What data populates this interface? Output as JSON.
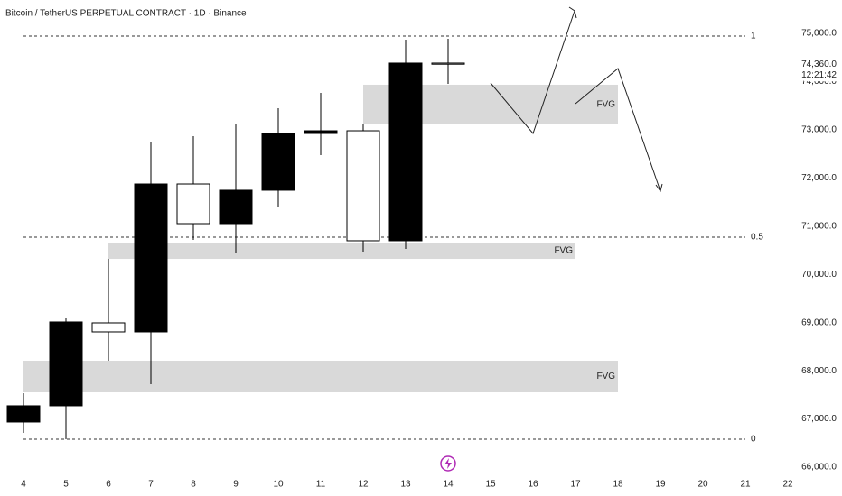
{
  "chart_data": {
    "type": "candlestick",
    "title": "Bitcoin / TetherUS PERPETUAL CONTRACT · 1D · Binance",
    "categories": [
      "4",
      "5",
      "6",
      "7",
      "8",
      "9",
      "10",
      "11",
      "12",
      "13",
      "14",
      "15",
      "16",
      "17",
      "18",
      "19",
      "20",
      "21",
      "22"
    ],
    "open": [
      66936,
      67273,
      68994,
      68807,
      71875,
      71052,
      71745,
      72923,
      72979,
      70697,
      74383,
      null,
      null,
      null,
      null,
      null,
      null,
      null,
      null
    ],
    "high": [
      67535,
      69088,
      70322,
      72736,
      72867,
      73129,
      73447,
      73765,
      73129,
      74869,
      74888,
      null,
      null,
      null,
      null,
      null,
      null,
      null,
      null
    ],
    "low": [
      66711,
      66580,
      68208,
      67721,
      70715,
      70453,
      71389,
      72474,
      70472,
      70528,
      73952,
      null,
      null,
      null,
      null,
      null,
      null,
      null,
      null
    ],
    "close": [
      67273,
      69013,
      68807,
      71875,
      71052,
      71745,
      72923,
      72979,
      70697,
      74383,
      74360,
      null,
      null,
      null,
      null,
      null,
      null,
      null,
      null
    ],
    "up_color": "#000000",
    "down_color": "#ffffff",
    "ylim": [
      66000,
      75000
    ],
    "yticks": [
      {
        "value": 66000,
        "label": "66,000.0"
      },
      {
        "value": 67000,
        "label": "67,000.0"
      },
      {
        "value": 68000,
        "label": "68,000.0"
      },
      {
        "value": 69000,
        "label": "69,000.0"
      },
      {
        "value": 70000,
        "label": "70,000.0"
      },
      {
        "value": 71000,
        "label": "71,000.0"
      },
      {
        "value": 72000,
        "label": "72,000.0"
      },
      {
        "value": 73000,
        "label": "73,000.0"
      },
      {
        "value": 74000,
        "label": "74,000.0"
      },
      {
        "value": 75000,
        "label": "75,000.0"
      }
    ],
    "last_price": {
      "value": 74360,
      "label": "74,360.0"
    },
    "countdown": "12:21:42",
    "levels": [
      {
        "value": 74944,
        "label": "1"
      },
      {
        "value": 70771,
        "label": "0.5"
      },
      {
        "value": 66580,
        "label": "0"
      }
    ],
    "zones": [
      {
        "label": "FVG",
        "top": 73934,
        "bottom": 73110,
        "from": "12",
        "to": "18",
        "color": "#d9d9d9"
      },
      {
        "label": "FVG",
        "top": 70659,
        "bottom": 70322,
        "from": "6",
        "to": "17",
        "color": "#d9d9d9"
      },
      {
        "label": "FVG",
        "top": 68208,
        "bottom": 67553,
        "from": "4",
        "to": "18",
        "color": "#d9d9d9"
      }
    ]
  }
}
